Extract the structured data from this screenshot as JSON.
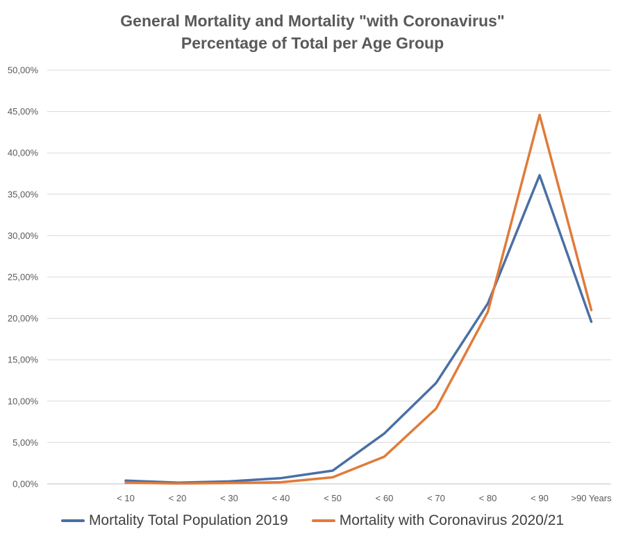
{
  "chart_data": {
    "type": "line",
    "title": "General Mortality and Mortality \"with Coronavirus\"",
    "subtitle": "Percentage of Total per Age Group",
    "categories": [
      "< 10",
      "< 20",
      "< 30",
      "< 40",
      "< 50",
      "< 60",
      "< 70",
      "< 80",
      "< 90",
      ">90 Years"
    ],
    "series": [
      {
        "name": "Mortality Total Population 2019",
        "color": "#4a6fa5",
        "values": [
          0.4,
          0.15,
          0.3,
          0.7,
          1.6,
          6.1,
          12.2,
          21.8,
          37.3,
          19.6
        ]
      },
      {
        "name": "Mortality with Coronavirus 2020/21",
        "color": "#e07b39",
        "values": [
          0.15,
          0.05,
          0.1,
          0.2,
          0.8,
          3.3,
          9.1,
          20.8,
          44.6,
          21.0
        ]
      }
    ],
    "ylim": [
      0,
      50
    ],
    "yticks": [
      "0,00%",
      "5,00%",
      "10,00%",
      "15,00%",
      "20,00%",
      "25,00%",
      "30,00%",
      "35,00%",
      "40,00%",
      "45,00%",
      "50,00%"
    ],
    "grid": true,
    "legend_position": "bottom"
  }
}
